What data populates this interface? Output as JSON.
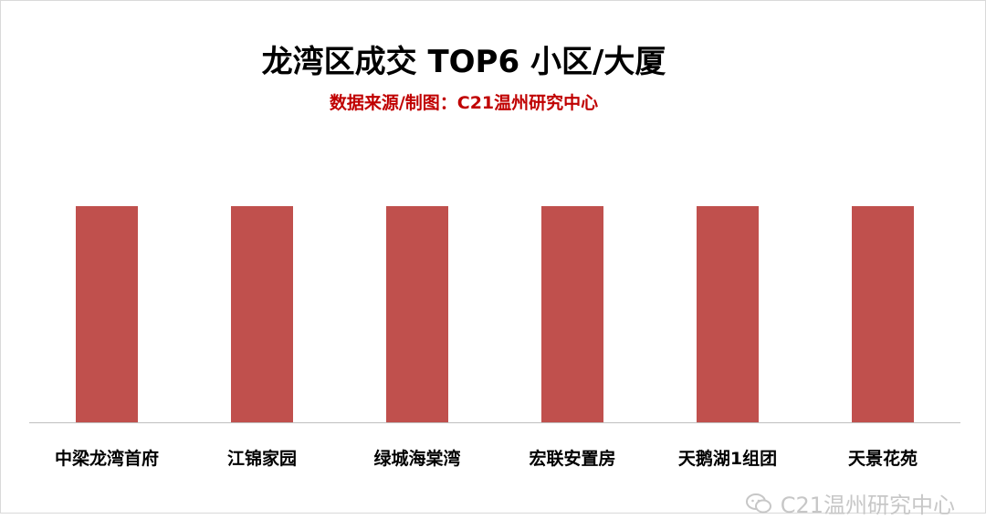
{
  "title": "龙湾区成交 TOP6 小区/大厦",
  "subtitle": "数据来源/制图：C21温州研究中心",
  "watermark": "C21温州研究中心",
  "colors": {
    "bar": "#c0504d",
    "axis": "#bfbfbf",
    "title": "#000000",
    "subtitle": "#c00000",
    "watermark": "#c7c7c7"
  },
  "chart_data": {
    "type": "bar",
    "categories": [
      "中梁龙湾首府",
      "江锦家园",
      "绿城海棠湾",
      "宏联安置房",
      "天鹅湖1组团",
      "天景花苑"
    ],
    "values": [
      1,
      1,
      1,
      1,
      1,
      1
    ],
    "ylim": [
      0,
      1
    ],
    "grid": false,
    "legend": "none"
  }
}
